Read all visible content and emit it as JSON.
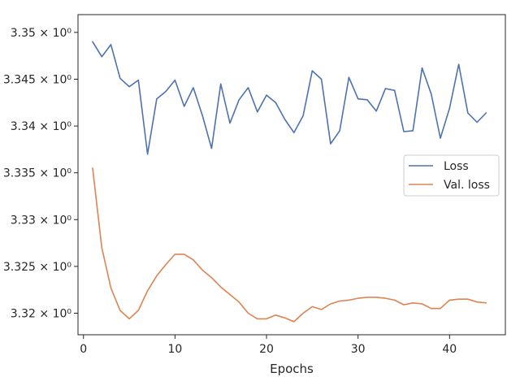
{
  "chart_data": {
    "type": "line",
    "xlabel": "Epochs",
    "ylabel": "",
    "xlim": [
      -0.6,
      46.1
    ],
    "ylim": [
      3.3177,
      3.3519
    ],
    "x_ticks": [
      {
        "value": 0,
        "label": "0"
      },
      {
        "value": 10,
        "label": "10"
      },
      {
        "value": 20,
        "label": "20"
      },
      {
        "value": 30,
        "label": "30"
      },
      {
        "value": 40,
        "label": "40"
      }
    ],
    "y_ticks": [
      {
        "value": 3.32,
        "label": "3.32 × 10⁰"
      },
      {
        "value": 3.325,
        "label": "3.325 × 10⁰"
      },
      {
        "value": 3.33,
        "label": "3.33 × 10⁰"
      },
      {
        "value": 3.335,
        "label": "3.335 × 10⁰"
      },
      {
        "value": 3.34,
        "label": "3.34 × 10⁰"
      },
      {
        "value": 3.345,
        "label": "3.345 × 10⁰"
      },
      {
        "value": 3.35,
        "label": "3.35 × 10⁰"
      }
    ],
    "grid": false,
    "legend_position": "right",
    "x": [
      1,
      2,
      3,
      4,
      5,
      6,
      7,
      8,
      9,
      10,
      11,
      12,
      13,
      14,
      15,
      16,
      17,
      18,
      19,
      20,
      21,
      22,
      23,
      24,
      25,
      26,
      27,
      28,
      29,
      30,
      31,
      32,
      33,
      34,
      35,
      36,
      37,
      38,
      39,
      40,
      41,
      42,
      43,
      44
    ],
    "series": [
      {
        "name": "Loss",
        "color": "#4c72b0",
        "values": [
          3.349,
          3.3474,
          3.3487,
          3.3451,
          3.3442,
          3.3449,
          3.337,
          3.3429,
          3.3437,
          3.3449,
          3.3421,
          3.3441,
          3.3411,
          3.3376,
          3.3445,
          3.3403,
          3.3428,
          3.3441,
          3.3415,
          3.3433,
          3.3425,
          3.3407,
          3.3393,
          3.3411,
          3.3459,
          3.345,
          3.3381,
          3.3395,
          3.3452,
          3.3429,
          3.3428,
          3.3416,
          3.344,
          3.3438,
          3.3394,
          3.3395,
          3.3462,
          3.3434,
          3.3387,
          3.3419,
          3.3466,
          3.3414,
          3.3404,
          3.3414
        ]
      },
      {
        "name": "Val. loss",
        "color": "#dd8452",
        "values": [
          3.3355,
          3.327,
          3.3227,
          3.3203,
          3.3194,
          3.3203,
          3.3224,
          3.324,
          3.3252,
          3.3263,
          3.3263,
          3.3257,
          3.3246,
          3.3238,
          3.3228,
          3.322,
          3.3212,
          3.32,
          3.3194,
          3.3194,
          3.3198,
          3.3195,
          3.3191,
          3.32,
          3.3207,
          3.3204,
          3.321,
          3.3213,
          3.3214,
          3.3216,
          3.3217,
          3.3217,
          3.3216,
          3.3214,
          3.3209,
          3.3211,
          3.321,
          3.3205,
          3.3205,
          3.3214,
          3.3215,
          3.3215,
          3.3212,
          3.3211
        ]
      }
    ]
  }
}
